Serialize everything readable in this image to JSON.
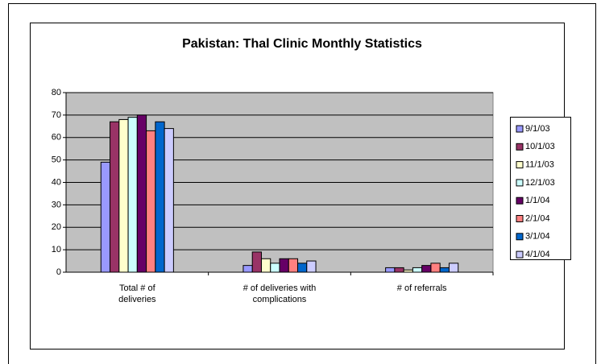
{
  "chart_data": {
    "type": "bar",
    "title": "Pakistan: Thal Clinic Monthly Statistics",
    "categories": [
      "Total # of deliveries",
      "# of deliveries with complications",
      "# of referrals"
    ],
    "series": [
      {
        "name": "9/1/03",
        "color": "#9999ff",
        "values": [
          49,
          3,
          2
        ]
      },
      {
        "name": "10/1/03",
        "color": "#993366",
        "values": [
          67,
          9,
          2
        ]
      },
      {
        "name": "11/1/03",
        "color": "#ffffcc",
        "values": [
          68,
          6,
          1
        ]
      },
      {
        "name": "12/1/03",
        "color": "#ccffff",
        "values": [
          69,
          4,
          2
        ]
      },
      {
        "name": "1/1/04",
        "color": "#660066",
        "values": [
          70,
          6,
          3
        ]
      },
      {
        "name": "2/1/04",
        "color": "#ff8080",
        "values": [
          63,
          6,
          4
        ]
      },
      {
        "name": "3/1/04",
        "color": "#0066cc",
        "values": [
          67,
          4,
          2
        ]
      },
      {
        "name": "4/1/04",
        "color": "#ccccff",
        "values": [
          64,
          5,
          4
        ]
      }
    ],
    "ylim": [
      0,
      80
    ],
    "yticks": [
      0,
      10,
      20,
      30,
      40,
      50,
      60,
      70,
      80
    ],
    "grid": true,
    "legend": "right"
  }
}
